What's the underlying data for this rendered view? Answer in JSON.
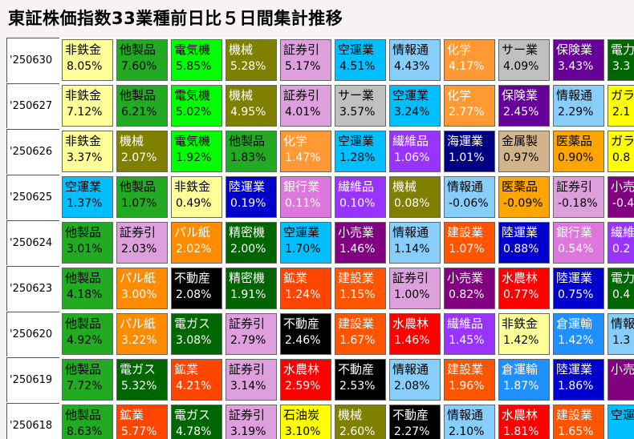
{
  "title": "東証株価指数33業種前日比５日間集計推移",
  "colors": {
    "非鉄金": {
      "bg": "#ffff99",
      "fg": "#000000"
    },
    "他製品": {
      "bg": "#22aa22",
      "fg": "#000000"
    },
    "電気機": {
      "bg": "#00ff00",
      "fg": "#000000"
    },
    "機械": {
      "bg": "#808000",
      "fg": "#ffffff"
    },
    "証券引": {
      "bg": "#dda0dd",
      "fg": "#000000"
    },
    "空運業": {
      "bg": "#00bfff",
      "fg": "#000000"
    },
    "情報通": {
      "bg": "#87cefa",
      "fg": "#000000"
    },
    "化学": {
      "bg": "#ff9933",
      "fg": "#ffffff"
    },
    "サー業": {
      "bg": "#c0c0c0",
      "fg": "#000000"
    },
    "保険業": {
      "bg": "#660099",
      "fg": "#ffffff"
    },
    "電力": {
      "bg": "#006600",
      "fg": "#ffffff"
    },
    "ガラ": {
      "bg": "#ffff00",
      "fg": "#000000"
    },
    "繊維品": {
      "bg": "#9933ff",
      "fg": "#ffffff"
    },
    "海運業": {
      "bg": "#000080",
      "fg": "#ffffff"
    },
    "金属製": {
      "bg": "#d2b48c",
      "fg": "#000000"
    },
    "医薬品": {
      "bg": "#ffa500",
      "fg": "#000000"
    },
    "陸運業": {
      "bg": "#0000cc",
      "fg": "#ffffff"
    },
    "銀行業": {
      "bg": "#dd77dd",
      "fg": "#ffffff"
    },
    "小売": {
      "bg": "#800080",
      "fg": "#ffffff"
    },
    "小売業": {
      "bg": "#800080",
      "fg": "#ffffff"
    },
    "パル紙": {
      "bg": "#ff8c00",
      "fg": "#ffffff"
    },
    "精密機": {
      "bg": "#006400",
      "fg": "#ffffff"
    },
    "建設業": {
      "bg": "#ff5500",
      "fg": "#ffffff"
    },
    "繊維": {
      "bg": "#9933ff",
      "fg": "#ffffff"
    },
    "不動産": {
      "bg": "#000000",
      "fg": "#ffffff"
    },
    "鉱業": {
      "bg": "#ff4500",
      "fg": "#ffffff"
    },
    "水農林": {
      "bg": "#ff0000",
      "fg": "#ffffff"
    },
    "電ガス": {
      "bg": "#006600",
      "fg": "#ffffff"
    },
    "倉運輸": {
      "bg": "#1e90ff",
      "fg": "#ffffff"
    },
    "情報": {
      "bg": "#87cefa",
      "fg": "#000000"
    },
    "石油炭": {
      "bg": "#ffff00",
      "fg": "#000000"
    },
    "空運": {
      "bg": "#00bfff",
      "fg": "#000000"
    }
  },
  "rows": [
    {
      "date": "'250630",
      "cells": [
        {
          "name": "非鉄金",
          "pct": "8.05%"
        },
        {
          "name": "他製品",
          "pct": "7.60%"
        },
        {
          "name": "電気機",
          "pct": "5.85%"
        },
        {
          "name": "機械",
          "pct": "5.28%"
        },
        {
          "name": "証券引",
          "pct": "5.17%"
        },
        {
          "name": "空運業",
          "pct": "4.51%"
        },
        {
          "name": "情報通",
          "pct": "4.43%"
        },
        {
          "name": "化学",
          "pct": "4.17%"
        },
        {
          "name": "サー業",
          "pct": "4.09%"
        },
        {
          "name": "保険業",
          "pct": "3.43%"
        },
        {
          "name": "電力",
          "pct": "3.3"
        }
      ]
    },
    {
      "date": "'250627",
      "cells": [
        {
          "name": "非鉄金",
          "pct": "7.12%"
        },
        {
          "name": "他製品",
          "pct": "6.21%"
        },
        {
          "name": "電気機",
          "pct": "5.02%"
        },
        {
          "name": "機械",
          "pct": "4.95%"
        },
        {
          "name": "証券引",
          "pct": "4.01%"
        },
        {
          "name": "サー業",
          "pct": "3.57%"
        },
        {
          "name": "空運業",
          "pct": "3.24%"
        },
        {
          "name": "化学",
          "pct": "2.77%"
        },
        {
          "name": "保険業",
          "pct": "2.45%"
        },
        {
          "name": "情報通",
          "pct": "2.29%"
        },
        {
          "name": "ガラ",
          "pct": "2.1"
        }
      ]
    },
    {
      "date": "'250626",
      "cells": [
        {
          "name": "非鉄金",
          "pct": "3.37%"
        },
        {
          "name": "機械",
          "pct": "2.07%"
        },
        {
          "name": "電気機",
          "pct": "1.92%"
        },
        {
          "name": "他製品",
          "pct": "1.83%"
        },
        {
          "name": "化学",
          "pct": "1.47%"
        },
        {
          "name": "空運業",
          "pct": "1.28%"
        },
        {
          "name": "繊維品",
          "pct": "1.06%"
        },
        {
          "name": "海運業",
          "pct": "1.01%"
        },
        {
          "name": "金属製",
          "pct": "0.97%"
        },
        {
          "name": "医薬品",
          "pct": "0.90%"
        },
        {
          "name": "ガラ",
          "pct": "0.8"
        }
      ]
    },
    {
      "date": "'250625",
      "cells": [
        {
          "name": "空運業",
          "pct": "1.37%"
        },
        {
          "name": "他製品",
          "pct": "1.07%"
        },
        {
          "name": "非鉄金",
          "pct": "0.49%"
        },
        {
          "name": "陸運業",
          "pct": "0.19%"
        },
        {
          "name": "銀行業",
          "pct": "0.11%"
        },
        {
          "name": "繊維品",
          "pct": "0.10%"
        },
        {
          "name": "機械",
          "pct": "0.08%"
        },
        {
          "name": "情報通",
          "pct": "-0.06%"
        },
        {
          "name": "医薬品",
          "pct": "-0.09%"
        },
        {
          "name": "証券引",
          "pct": "-0.18%"
        },
        {
          "name": "小売",
          "pct": "-0.4"
        }
      ]
    },
    {
      "date": "'250624",
      "cells": [
        {
          "name": "他製品",
          "pct": "3.01%"
        },
        {
          "name": "証券引",
          "pct": "2.03%"
        },
        {
          "name": "パル紙",
          "pct": "2.02%"
        },
        {
          "name": "精密機",
          "pct": "2.00%"
        },
        {
          "name": "空運業",
          "pct": "1.70%"
        },
        {
          "name": "小売業",
          "pct": "1.46%"
        },
        {
          "name": "情報通",
          "pct": "1.14%"
        },
        {
          "name": "建設業",
          "pct": "1.07%"
        },
        {
          "name": "陸運業",
          "pct": "0.88%"
        },
        {
          "name": "銀行業",
          "pct": "0.54%"
        },
        {
          "name": "繊維",
          "pct": "0.2"
        }
      ]
    },
    {
      "date": "'250623",
      "cells": [
        {
          "name": "他製品",
          "pct": "4.18%"
        },
        {
          "name": "パル紙",
          "pct": "3.00%"
        },
        {
          "name": "不動産",
          "pct": "2.08%"
        },
        {
          "name": "精密機",
          "pct": "1.91%"
        },
        {
          "name": "鉱業",
          "pct": "1.24%"
        },
        {
          "name": "建設業",
          "pct": "1.15%"
        },
        {
          "name": "証券引",
          "pct": "1.00%"
        },
        {
          "name": "小売業",
          "pct": "0.82%"
        },
        {
          "name": "水農林",
          "pct": "0.77%"
        },
        {
          "name": "陸運業",
          "pct": "0.75%"
        },
        {
          "name": "電力",
          "pct": "0.4"
        }
      ]
    },
    {
      "date": "'250620",
      "cells": [
        {
          "name": "他製品",
          "pct": "4.92%"
        },
        {
          "name": "パル紙",
          "pct": "3.22%"
        },
        {
          "name": "電ガス",
          "pct": "3.08%"
        },
        {
          "name": "証券引",
          "pct": "2.79%"
        },
        {
          "name": "不動産",
          "pct": "2.46%"
        },
        {
          "name": "建設業",
          "pct": "1.67%"
        },
        {
          "name": "水農林",
          "pct": "1.46%"
        },
        {
          "name": "繊維品",
          "pct": "1.45%"
        },
        {
          "name": "非鉄金",
          "pct": "1.42%"
        },
        {
          "name": "倉運輸",
          "pct": "1.42%"
        },
        {
          "name": "情報",
          "pct": "1.3"
        }
      ]
    },
    {
      "date": "'250619",
      "cells": [
        {
          "name": "他製品",
          "pct": "7.72%"
        },
        {
          "name": "電ガス",
          "pct": "5.32%"
        },
        {
          "name": "鉱業",
          "pct": "4.21%"
        },
        {
          "name": "証券引",
          "pct": "3.14%"
        },
        {
          "name": "水農林",
          "pct": "2.59%"
        },
        {
          "name": "不動産",
          "pct": "2.53%"
        },
        {
          "name": "情報通",
          "pct": "2.08%"
        },
        {
          "name": "建設業",
          "pct": "1.96%"
        },
        {
          "name": "倉運輸",
          "pct": "1.87%"
        },
        {
          "name": "陸運業",
          "pct": "1.86%"
        },
        {
          "name": "小売",
          "pct": ""
        }
      ]
    },
    {
      "date": "'250618",
      "cells": [
        {
          "name": "他製品",
          "pct": "8.63%"
        },
        {
          "name": "鉱業",
          "pct": "5.77%"
        },
        {
          "name": "電ガス",
          "pct": "4.78%"
        },
        {
          "name": "証券引",
          "pct": "3.19%"
        },
        {
          "name": "石油炭",
          "pct": "3.10%"
        },
        {
          "name": "機械",
          "pct": "2.60%"
        },
        {
          "name": "不動産",
          "pct": "2.27%"
        },
        {
          "name": "情報通",
          "pct": "2.10%"
        },
        {
          "name": "水農林",
          "pct": "1.81%"
        },
        {
          "name": "建設業",
          "pct": "1.65%"
        },
        {
          "name": "空運",
          "pct": ""
        }
      ]
    }
  ]
}
